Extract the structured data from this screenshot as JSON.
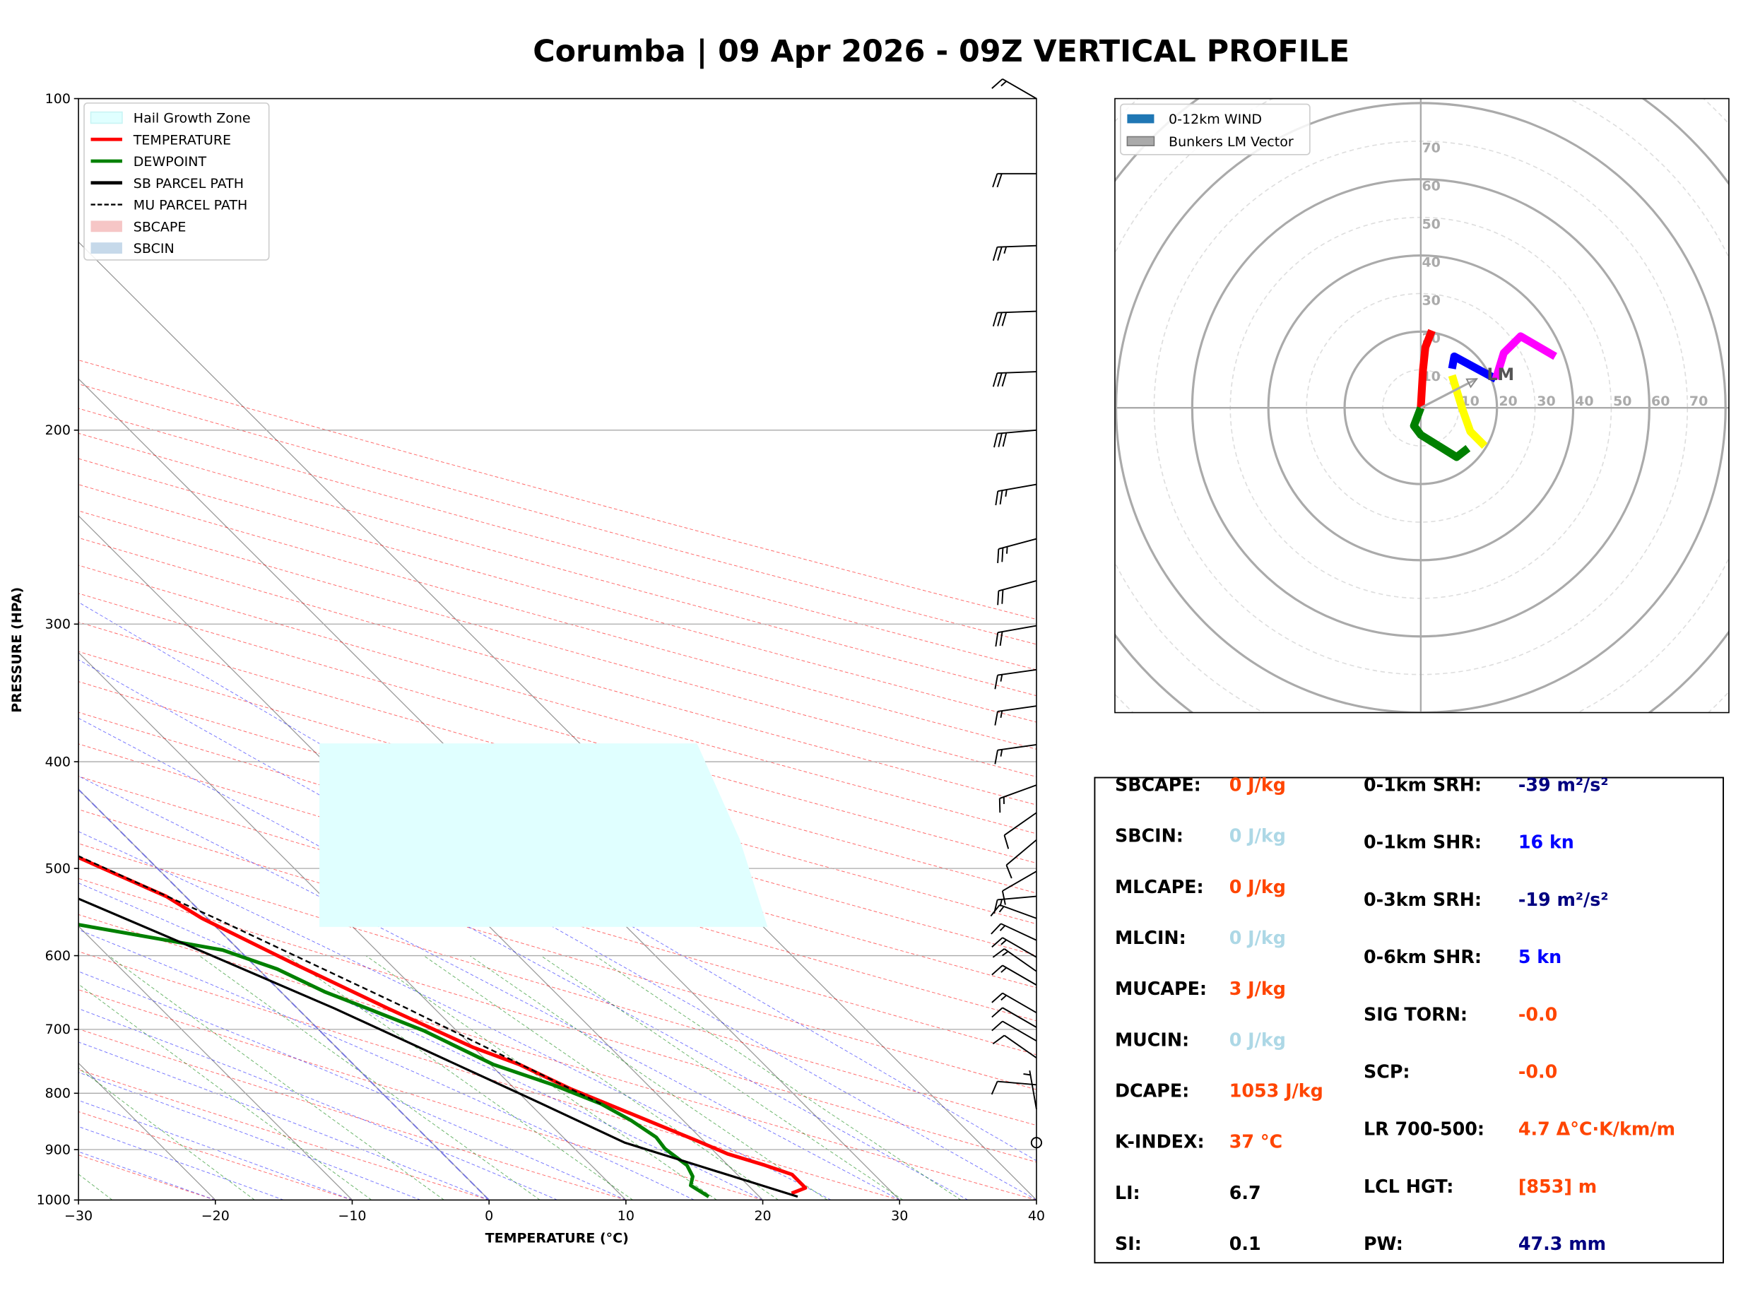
{
  "chart_data": [
    {
      "type": "line",
      "subtype": "skew-t log-p",
      "title": "Corumba | 09 Apr 2026 - 09Z VERTICAL PROFILE",
      "xlabel": "TEMPERATURE (°C)",
      "ylabel": "PRESSURE (HPA)",
      "xlim": [
        -30,
        40
      ],
      "ylim": [
        1000,
        100
      ],
      "x_ticks": [
        "−30",
        "−20",
        "−10",
        "0",
        "10",
        "20",
        "30",
        "40"
      ],
      "x_tick_values": [
        -30,
        -20,
        -10,
        0,
        10,
        20,
        30,
        40
      ],
      "y_ticks": [
        "100",
        "200",
        "300",
        "400",
        "500",
        "600",
        "700",
        "800",
        "900",
        "1000"
      ],
      "y_tick_values": [
        100,
        200,
        300,
        400,
        500,
        600,
        700,
        800,
        900,
        1000
      ],
      "legend": {
        "placement": "top-left",
        "items": [
          {
            "label": "Hail Growth Zone",
            "color": "#e0ffff"
          },
          {
            "label": "TEMPERATURE",
            "color": "#ff0000"
          },
          {
            "label": "DEWPOINT",
            "color": "#008000"
          },
          {
            "label": "SB PARCEL PATH",
            "color": "#000000"
          },
          {
            "label": "MU PARCEL PATH",
            "color": "#000000"
          },
          {
            "label": "SBCAPE",
            "color": "#f6c6c6"
          },
          {
            "label": "SBCIN",
            "color": "#c6d9ea"
          }
        ]
      },
      "hail_growth_zone_hpa": [
        565,
        385
      ],
      "series": [
        {
          "name": "TEMPERATURE",
          "pressure": [
            986,
            975,
            948,
            930,
            908,
            883,
            827,
            793,
            753,
            727,
            670,
            610,
            555,
            530,
            483,
            450,
            400,
            356,
            302,
            275,
            248,
            223,
            200,
            176,
            155,
            135,
            117,
            100
          ],
          "temperature": [
            22.6,
            24.0,
            24.0,
            22.7,
            20.8,
            19.5,
            16.2,
            14.1,
            12.1,
            10.0,
            6.6,
            3.0,
            -0.4,
            -1.4,
            -5.5,
            -9.6,
            -16.2,
            -22.3,
            -30.1,
            -36.2,
            -42.4,
            -48.1,
            -53.4,
            -59.6,
            -65.5,
            -70.8,
            -75.0,
            -79.0
          ]
        },
        {
          "name": "DEWPOINT",
          "pressure": [
            993,
            970,
            952,
            930,
            898,
            877,
            847,
            818,
            786,
            753,
            702,
            670,
            647,
            617,
            593,
            562,
            543,
            530,
            500,
            471,
            420,
            400,
            356,
            328,
            301,
            274,
            251,
            223,
            199,
            176,
            155,
            135,
            117,
            100
          ],
          "temperature": [
            16.3,
            15.8,
            16.6,
            17.0,
            16.6,
            16.8,
            16.2,
            15.2,
            13.1,
            10.2,
            7.6,
            5.1,
            3.2,
            1.4,
            -1.2,
            -10.0,
            -21.1,
            -28.0,
            -35.4,
            -37.9,
            -41.8,
            -44.4,
            -50.3,
            -52.4,
            -51.9,
            -50.1,
            -50.9,
            -54.8,
            -60.4,
            -69.2,
            -75.4,
            -79.5,
            -82.9,
            -86.1
          ]
        },
        {
          "name": "SB PARCEL PATH",
          "pressure": [
            993,
            887,
            808,
            670,
            596,
            506,
            429,
            348,
            288,
            233,
            194,
            153,
            124,
            100
          ],
          "temperature": [
            22.8,
            14.1,
            10.4,
            2.7,
            -2.7,
            -10.4,
            -19.4,
            -30.9,
            -42.4,
            -55.5,
            -66.9,
            -80.0,
            -92.3,
            -102.1
          ]
        },
        {
          "name": "MU PARCEL PATH",
          "pressure": [
            818,
            670,
            555,
            471,
            400,
            356,
            302,
            256,
            208,
            172,
            136,
            100
          ],
          "temperature": [
            15.2,
            8.0,
            0.6,
            -6.3,
            -14.1,
            -21.1,
            -30.1,
            -40.7,
            -53.8,
            -66.1,
            -79.2,
            -94.1
          ]
        }
      ],
      "wind_barbs": [
        {
          "p": 100,
          "dir": 300,
          "spd": 15
        },
        {
          "p": 117,
          "dir": 270,
          "spd": 20
        },
        {
          "p": 136,
          "dir": 268,
          "spd": 25
        },
        {
          "p": 156,
          "dir": 268,
          "spd": 30
        },
        {
          "p": 177,
          "dir": 268,
          "spd": 30
        },
        {
          "p": 200,
          "dir": 265,
          "spd": 30
        },
        {
          "p": 224,
          "dir": 260,
          "spd": 25
        },
        {
          "p": 251,
          "dir": 255,
          "spd": 25
        },
        {
          "p": 274,
          "dir": 255,
          "spd": 20
        },
        {
          "p": 301,
          "dir": 260,
          "spd": 20
        },
        {
          "p": 330,
          "dir": 262,
          "spd": 15
        },
        {
          "p": 356,
          "dir": 262,
          "spd": 15
        },
        {
          "p": 386,
          "dir": 262,
          "spd": 15
        },
        {
          "p": 420,
          "dir": 250,
          "spd": 15
        },
        {
          "p": 445,
          "dir": 235,
          "spd": 10
        },
        {
          "p": 471,
          "dir": 230,
          "spd": 10
        },
        {
          "p": 503,
          "dir": 240,
          "spd": 10
        },
        {
          "p": 530,
          "dir": 265,
          "spd": 15
        },
        {
          "p": 555,
          "dir": 290,
          "spd": 15
        },
        {
          "p": 581,
          "dir": 295,
          "spd": 15
        },
        {
          "p": 602,
          "dir": 300,
          "spd": 15
        },
        {
          "p": 620,
          "dir": 305,
          "spd": 15
        },
        {
          "p": 638,
          "dir": 300,
          "spd": 15
        },
        {
          "p": 676,
          "dir": 300,
          "spd": 15
        },
        {
          "p": 697,
          "dir": 300,
          "spd": 10
        },
        {
          "p": 717,
          "dir": 300,
          "spd": 10
        },
        {
          "p": 743,
          "dir": 305,
          "spd": 10
        },
        {
          "p": 786,
          "dir": 275,
          "spd": 10
        },
        {
          "p": 827,
          "dir": 350,
          "spd": 5
        },
        {
          "p": 887,
          "dir": 0,
          "spd": 0
        }
      ]
    },
    {
      "type": "line",
      "subtype": "hodograph",
      "units": "kn",
      "rings": [
        10,
        20,
        30,
        40,
        50,
        60,
        70
      ],
      "ring_labels": [
        "10",
        "20",
        "30",
        "40",
        "50",
        "60",
        "70"
      ],
      "legend": {
        "placement": "top-left",
        "items": [
          {
            "label": "0-12km WIND",
            "color": "#1f77b4"
          },
          {
            "label": "Bunkers LM Vector",
            "color": "#aaaaaa"
          }
        ]
      },
      "series": [
        {
          "name": "segment-red",
          "color": "#ff0000",
          "u": [
            0,
            0.6,
            1.2,
            2.9
          ],
          "v": [
            0,
            10,
            15.9,
            20.3
          ]
        },
        {
          "name": "segment-green",
          "color": "#008000",
          "u": [
            0,
            -1.8,
            0,
            9.4,
            12.4
          ],
          "v": [
            0,
            -4.7,
            -7.1,
            -12.9,
            -10.6
          ]
        },
        {
          "name": "segment-yellow",
          "color": "#ffff00",
          "u": [
            16.8,
            13.0,
            10.9,
            8.2
          ],
          "v": [
            -10,
            -6.2,
            -0.3,
            8.5
          ]
        },
        {
          "name": "segment-blue",
          "color": "#0000ff",
          "u": [
            8.2,
            8.8,
            19.7
          ],
          "v": [
            10.3,
            13.5,
            7.6
          ]
        },
        {
          "name": "segment-magenta",
          "color": "#ff00ff",
          "u": [
            19.7,
            21.8,
            26.2,
            35.3
          ],
          "v": [
            7.6,
            14.4,
            18.8,
            13.5
          ]
        }
      ],
      "lm_vector": {
        "u": 14.7,
        "v": 7.6,
        "label": "LM"
      }
    }
  ],
  "stats": {
    "left": [
      {
        "label": "SBCAPE:",
        "value": "0 J/kg",
        "color": "#ff4500"
      },
      {
        "label": "SBCIN:",
        "value": "0 J/kg",
        "color": "#add8e6"
      },
      {
        "label": "MLCAPE:",
        "value": "0 J/kg",
        "color": "#ff4500"
      },
      {
        "label": "MLCIN:",
        "value": "0 J/kg",
        "color": "#add8e6"
      },
      {
        "label": "MUCAPE:",
        "value": "3 J/kg",
        "color": "#ff4500"
      },
      {
        "label": "MUCIN:",
        "value": "0 J/kg",
        "color": "#add8e6"
      },
      {
        "label": "DCAPE:",
        "value": "1053 J/kg",
        "color": "#ff4500"
      },
      {
        "label": "K-INDEX:",
        "value": "37 °C",
        "color": "#ff4500"
      },
      {
        "label": "LI:",
        "value": "6.7",
        "color": "#000000"
      },
      {
        "label": "SI:",
        "value": "0.1",
        "color": "#000000"
      }
    ],
    "right": [
      {
        "label": "0-1km SRH:",
        "value": "-39 m²/s²",
        "color": "#000080"
      },
      {
        "label": "0-1km SHR:",
        "value": "16 kn",
        "color": "#0000ff"
      },
      {
        "label": "0-3km SRH:",
        "value": "-19 m²/s²",
        "color": "#000080"
      },
      {
        "label": "0-6km SHR:",
        "value": "5 kn",
        "color": "#0000ff"
      },
      {
        "label": "SIG TORN:",
        "value": "-0.0",
        "color": "#ff4500"
      },
      {
        "label": "SCP:",
        "value": "-0.0",
        "color": "#ff4500"
      },
      {
        "label": "LR 700-500:",
        "value": "4.7 Δ°C·K/km/m",
        "color": "#ff4500"
      },
      {
        "label": "LCL HGT:",
        "value": "[853] m",
        "color": "#ff4500"
      },
      {
        "label": "PW:",
        "value": "47.3 mm",
        "color": "#000080"
      }
    ]
  }
}
